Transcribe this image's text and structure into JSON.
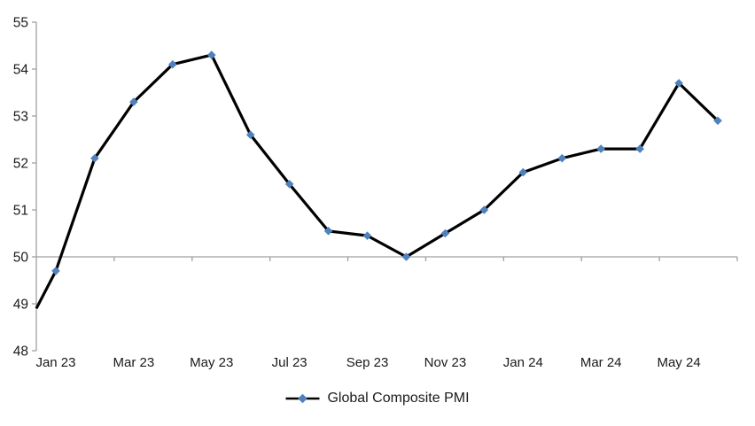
{
  "chart_data": {
    "type": "line",
    "title": "",
    "categories": [
      "Jan 23",
      "Feb 23",
      "Mar 23",
      "Apr 23",
      "May 23",
      "Jun 23",
      "Jul 23",
      "Aug 23",
      "Sep 23",
      "Oct 23",
      "Nov 23",
      "Dec 23",
      "Jan 24",
      "Feb 24",
      "Mar 24",
      "Apr 24",
      "May 24",
      "Jun 24"
    ],
    "series": [
      {
        "name": "Global Composite PMI",
        "values": [
          49.7,
          52.1,
          53.3,
          54.1,
          54.3,
          52.6,
          51.55,
          50.55,
          50.45,
          50.0,
          50.5,
          51.0,
          51.8,
          52.1,
          52.3,
          52.3,
          53.7,
          52.9
        ],
        "edge_entry_value": 48.9,
        "line_color": "#000000",
        "marker": "diamond",
        "marker_color": "#4f81bd"
      }
    ],
    "xtick_labels": [
      "Jan 23",
      "Mar 23",
      "May 23",
      "Jul 23",
      "Sep 23",
      "Nov 23",
      "Jan 24",
      "Mar 24",
      "May 24"
    ],
    "yticks": [
      48,
      49,
      50,
      51,
      52,
      53,
      54,
      55
    ],
    "ylim": [
      48,
      55
    ],
    "x_axis_position": 50,
    "grid": false,
    "legend": {
      "label": "Global Composite PMI",
      "position": "bottom-center"
    },
    "style": {
      "axis_color": "#a0a0a0",
      "label_color": "#1a1a1a"
    }
  }
}
